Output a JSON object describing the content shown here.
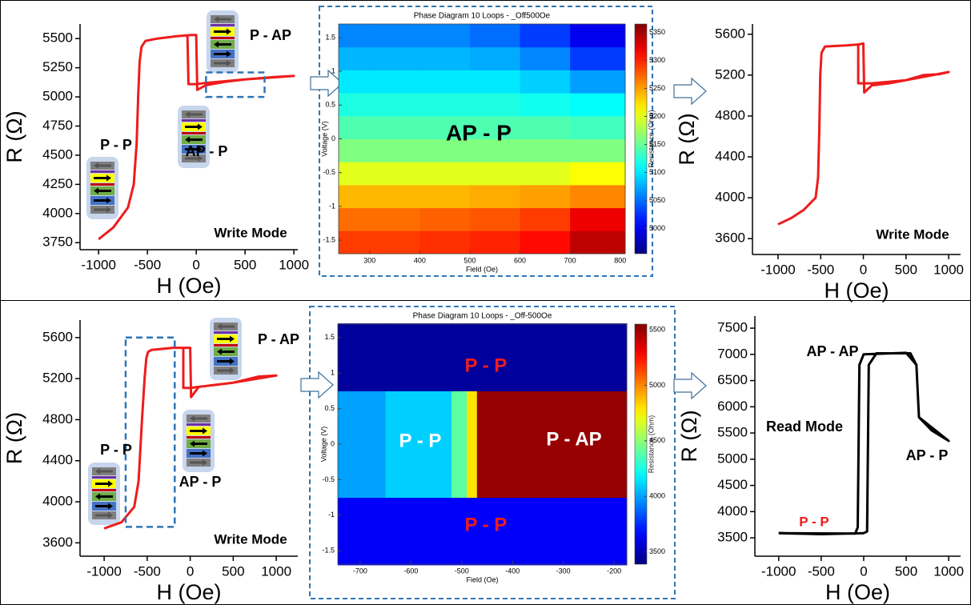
{
  "chart_data": [
    {
      "type": "line",
      "x_label": "H (Oe)",
      "y_label": "R (Ω)",
      "color": "#ee1c1c",
      "x": [
        -1000,
        -850,
        -700,
        -640,
        -610,
        -595,
        -580,
        -560,
        -520,
        -400,
        -200,
        -50,
        0,
        10,
        100,
        300,
        500,
        800,
        1000,
        500,
        100,
        0,
        -80,
        -90
      ],
      "values": [
        3780,
        3880,
        4050,
        4250,
        4600,
        5000,
        5300,
        5430,
        5480,
        5500,
        5520,
        5530,
        5530,
        5060,
        5100,
        5130,
        5150,
        5170,
        5180,
        5150,
        5120,
        5110,
        5110,
        5520
      ],
      "xlim": [
        -1190,
        1040
      ],
      "ylim": [
        3690,
        5625
      ],
      "xticks": [
        -1000,
        -500,
        0,
        500,
        1000
      ],
      "yticks": [
        3750,
        4000,
        4250,
        4500,
        4750,
        5000,
        5250,
        5500
      ],
      "highlight": {
        "x": [
          100,
          700
        ],
        "y": [
          5000,
          5210
        ]
      },
      "annotations": [
        {
          "text": "P - AP",
          "color": "#000"
        },
        {
          "text": "P - P",
          "color": "#000"
        },
        {
          "text": "AP - P",
          "color": "#000"
        },
        {
          "text": "Write Mode",
          "color": "#000"
        }
      ]
    },
    {
      "type": "heatmap",
      "title": "Phase Diagram 10 Loops - _Off500Oe",
      "x_label": "Field (Oe)",
      "y_label": "Voltage (V)",
      "colorbar_label": "Resistance (Ohm)",
      "colormap": "jet",
      "x_edges": [
        238,
        300,
        400,
        500,
        600,
        700,
        810
      ],
      "y_edges": [
        -1.7,
        -1.36,
        -1.02,
        -0.68,
        -0.34,
        0,
        0.34,
        0.68,
        1.02,
        1.36,
        1.7
      ],
      "z": [
        [
          5290,
          5290,
          5295,
          5300,
          5310,
          5340
        ],
        [
          5270,
          5270,
          5275,
          5280,
          5290,
          5320
        ],
        [
          5240,
          5240,
          5240,
          5245,
          5250,
          5260
        ],
        [
          5200,
          5200,
          5200,
          5200,
          5200,
          5210
        ],
        [
          5160,
          5160,
          5160,
          5160,
          5160,
          5160
        ],
        [
          5140,
          5140,
          5140,
          5140,
          5140,
          5135
        ],
        [
          5120,
          5120,
          5120,
          5120,
          5115,
          5110
        ],
        [
          5100,
          5100,
          5100,
          5100,
          5090,
          5070
        ],
        [
          5080,
          5080,
          5080,
          5075,
          5060,
          5030
        ],
        [
          5060,
          5060,
          5060,
          5050,
          5030,
          5000
        ]
      ],
      "xlim": [
        238,
        810
      ],
      "ylim": [
        -1.7,
        1.7
      ],
      "clim": [
        4955,
        5365
      ],
      "xticks": [
        300,
        400,
        500,
        600,
        700,
        800
      ],
      "yticks": [
        -1.5,
        -1,
        -0.5,
        0,
        0.5,
        1,
        1.5
      ],
      "cticks": [
        5000,
        5050,
        5100,
        5150,
        5200,
        5250,
        5300,
        5350
      ],
      "annotations": [
        {
          "text": "AP - P",
          "color": "#000"
        }
      ]
    },
    {
      "type": "line",
      "x_label": "H (Oe)",
      "y_label": "R (Ω)",
      "color": "#ee1c1c",
      "x": [
        -1000,
        -850,
        -700,
        -560,
        -530,
        -515,
        -505,
        -490,
        -450,
        -200,
        -50,
        0,
        10,
        100,
        300,
        500,
        700,
        900,
        1000,
        500,
        100,
        0,
        -60,
        -60
      ],
      "values": [
        3740,
        3800,
        3880,
        4000,
        4200,
        4700,
        5200,
        5420,
        5480,
        5490,
        5500,
        5510,
        5030,
        5100,
        5120,
        5150,
        5200,
        5210,
        5230,
        5150,
        5120,
        5120,
        5120,
        5500
      ],
      "xlim": [
        -1300,
        1140
      ],
      "ylim": [
        3445,
        5700
      ],
      "xticks": [
        -1000,
        -500,
        0,
        500,
        1000
      ],
      "yticks": [
        3600,
        4000,
        4400,
        4800,
        5200,
        5600
      ],
      "annotations": [
        {
          "text": "Write Mode",
          "color": "#000"
        }
      ]
    },
    {
      "type": "line",
      "x_label": "H (Oe)",
      "y_label": "R (Ω)",
      "color": "#ee1c1c",
      "x": [
        -1000,
        -800,
        -650,
        -600,
        -560,
        -530,
        -510,
        -490,
        -450,
        -200,
        -50,
        0,
        10,
        100,
        300,
        500,
        800,
        1000,
        500,
        100,
        0,
        -80,
        -80
      ],
      "values": [
        3740,
        3800,
        3950,
        4200,
        4800,
        5200,
        5400,
        5460,
        5480,
        5500,
        5500,
        5500,
        5020,
        5120,
        5140,
        5160,
        5220,
        5230,
        5160,
        5120,
        5110,
        5110,
        5500
      ],
      "xlim": [
        -1280,
        1250
      ],
      "ylim": [
        3470,
        5770
      ],
      "xticks": [
        -1000,
        -500,
        0,
        500,
        1000
      ],
      "yticks": [
        3600,
        4000,
        4400,
        4800,
        5200,
        5600
      ],
      "highlight": {
        "x": [
          -750,
          -180
        ],
        "y": [
          3756,
          5600
        ]
      },
      "annotations": [
        {
          "text": "P - AP",
          "color": "#000"
        },
        {
          "text": "P - P",
          "color": "#000"
        },
        {
          "text": "AP - P",
          "color": "#000"
        },
        {
          "text": "Write Mode",
          "color": "#000"
        }
      ]
    },
    {
      "type": "heatmap",
      "title": "Phase Diagram 10 Loops - _Off-500Oe",
      "x_label": "Field (Oe)",
      "y_label": "Voltage (V)",
      "colorbar_label": "Resistance (Ohm)",
      "colormap": "jet",
      "x_edges": [
        -744,
        -650,
        -520,
        -490,
        -470,
        -400,
        -300,
        -175
      ],
      "y_edges": [
        -1.7,
        -0.75,
        0.75,
        1.7
      ],
      "z": [
        [
          3650,
          3650,
          3650,
          3650,
          3650,
          3650,
          3650
        ],
        [
          4000,
          4100,
          4400,
          4800,
          5500,
          5500,
          5500
        ],
        [
          3450,
          3450,
          3450,
          3450,
          3450,
          3450,
          3450
        ]
      ],
      "xlim": [
        -744,
        -175
      ],
      "ylim": [
        -1.69,
        1.69
      ],
      "clim": [
        3390,
        5550
      ],
      "xticks": [
        -700,
        -600,
        -500,
        -400,
        -300,
        -200
      ],
      "yticks": [
        -1.5,
        -1,
        -0.5,
        0,
        0.5,
        1,
        1.5
      ],
      "cticks": [
        3500,
        4000,
        4500,
        5000,
        5500
      ],
      "annotations": [
        {
          "text": "P - P",
          "color": "#ee1c1c"
        },
        {
          "text": "P - P",
          "color": "#ffffff"
        },
        {
          "text": "P - AP",
          "color": "#ffffff"
        },
        {
          "text": "P - P",
          "color": "#ee1c1c"
        }
      ]
    },
    {
      "type": "line",
      "x_label": "H (Oe)",
      "y_label": "R (Ω)",
      "color": "#000000",
      "x": [
        -1000,
        -500,
        0,
        40,
        60,
        150,
        550,
        620,
        650,
        800,
        1000,
        650,
        620,
        500,
        0,
        -50,
        -70,
        -100,
        -1000
      ],
      "values": [
        3590,
        3570,
        3590,
        3620,
        6800,
        7020,
        7020,
        6800,
        5800,
        5550,
        5350,
        5800,
        6800,
        7030,
        7000,
        6800,
        3700,
        3580,
        3590
      ],
      "xlim": [
        -1280,
        1140
      ],
      "ylim": [
        3150,
        7730
      ],
      "xticks": [
        -1000,
        -500,
        0,
        500,
        1000
      ],
      "yticks": [
        3500,
        4000,
        4500,
        5000,
        5500,
        6000,
        6500,
        7000,
        7500
      ],
      "annotations": [
        {
          "text": "AP - AP",
          "color": "#000"
        },
        {
          "text": "Read Mode",
          "color": "#000"
        },
        {
          "text": "AP - P",
          "color": "#000"
        },
        {
          "text": "P - P",
          "color": "#ee1c1c"
        }
      ]
    }
  ]
}
